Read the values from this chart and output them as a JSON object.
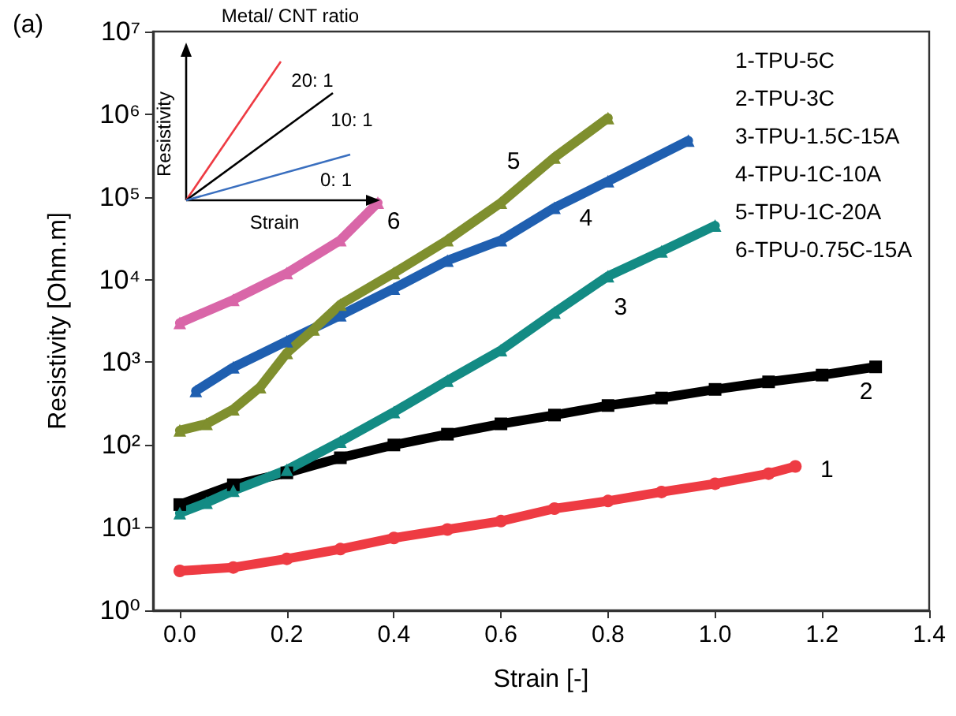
{
  "chart_data": [
    {
      "type": "line",
      "xlabel": "Strain [-]",
      "ylabel": "Resistivity [Ohm.m]",
      "log": "y",
      "xlim": [
        -0.05,
        1.4
      ],
      "xticks": [
        {
          "value": 0,
          "label": "0.0"
        },
        0.2,
        0.4,
        0.6,
        0.8,
        {
          "value": 1,
          "label": "1.0"
        },
        1.2,
        1.4
      ],
      "ylim": [
        1,
        10000000
      ],
      "yticks": [
        {
          "value": 1,
          "label": "10⁰"
        },
        {
          "value": 10,
          "label": "10¹"
        },
        {
          "value": 100,
          "label": "10²"
        },
        {
          "value": 1000,
          "label": "10³"
        },
        {
          "value": 10000,
          "label": "10⁴"
        },
        {
          "value": 100000,
          "label": "10⁵"
        },
        {
          "value": 1000000,
          "label": "10⁶"
        },
        {
          "value": 10000000,
          "label": "10⁷"
        }
      ],
      "grid": false,
      "series": [
        {
          "name": "1",
          "color": "#ee3b43",
          "marker": "circle",
          "x": [
            0,
            0.1,
            0.2,
            0.3,
            0.4,
            0.5,
            0.6,
            0.7,
            0.8,
            0.9,
            1.0,
            1.1,
            1.15
          ],
          "values": [
            3,
            3.3,
            4.2,
            5.5,
            7.5,
            9.5,
            12,
            17,
            21,
            27,
            34,
            45,
            55
          ]
        },
        {
          "name": "2",
          "color": "#000000",
          "marker": "square",
          "x": [
            0,
            0.1,
            0.2,
            0.3,
            0.4,
            0.5,
            0.6,
            0.7,
            0.8,
            0.9,
            1.0,
            1.1,
            1.2,
            1.3
          ],
          "values": [
            19,
            33,
            46,
            70,
            100,
            135,
            180,
            230,
            300,
            370,
            470,
            580,
            700,
            880
          ]
        },
        {
          "name": "3",
          "color": "#138b84",
          "marker": "triangle",
          "x": [
            0,
            0.05,
            0.1,
            0.2,
            0.3,
            0.4,
            0.5,
            0.6,
            0.7,
            0.8,
            0.9,
            1.0
          ],
          "values": [
            15,
            20,
            28,
            50,
            110,
            250,
            600,
            1400,
            4000,
            11000,
            22000,
            45000
          ]
        },
        {
          "name": "4",
          "color": "#1f5fb0",
          "marker": "triangle",
          "x": [
            0.03,
            0.1,
            0.2,
            0.3,
            0.4,
            0.5,
            0.6,
            0.7,
            0.8,
            0.95
          ],
          "values": [
            450,
            870,
            1800,
            3700,
            7800,
            17000,
            30000,
            74000,
            155000,
            480000
          ]
        },
        {
          "name": "5",
          "color": "#7f8f2e",
          "marker": "triangle",
          "x": [
            0,
            0.05,
            0.1,
            0.15,
            0.2,
            0.25,
            0.3,
            0.4,
            0.5,
            0.6,
            0.7,
            0.8
          ],
          "values": [
            150,
            180,
            270,
            500,
            1300,
            2500,
            5000,
            12000,
            30000,
            85000,
            300000,
            900000
          ]
        },
        {
          "name": "6",
          "color": "#d966a8",
          "marker": "triangle",
          "x": [
            0,
            0.1,
            0.2,
            0.3,
            0.37
          ],
          "values": [
            3000,
            5700,
            12000,
            30000,
            85000
          ]
        }
      ],
      "annotations": [
        "(a)",
        "1-TPU-5C",
        "2-TPU-3C",
        "3-TPU-1.5C-15A",
        "4-TPU-1C-10A",
        "5-TPU-1C-20A",
        "6-TPU-0.75C-15A"
      ]
    },
    {
      "type": "other",
      "annotations": [
        "Metal/ CNT ratio",
        "20: 1",
        "10: 1",
        "0: 1",
        "Resistivity",
        "Strain"
      ]
    }
  ]
}
